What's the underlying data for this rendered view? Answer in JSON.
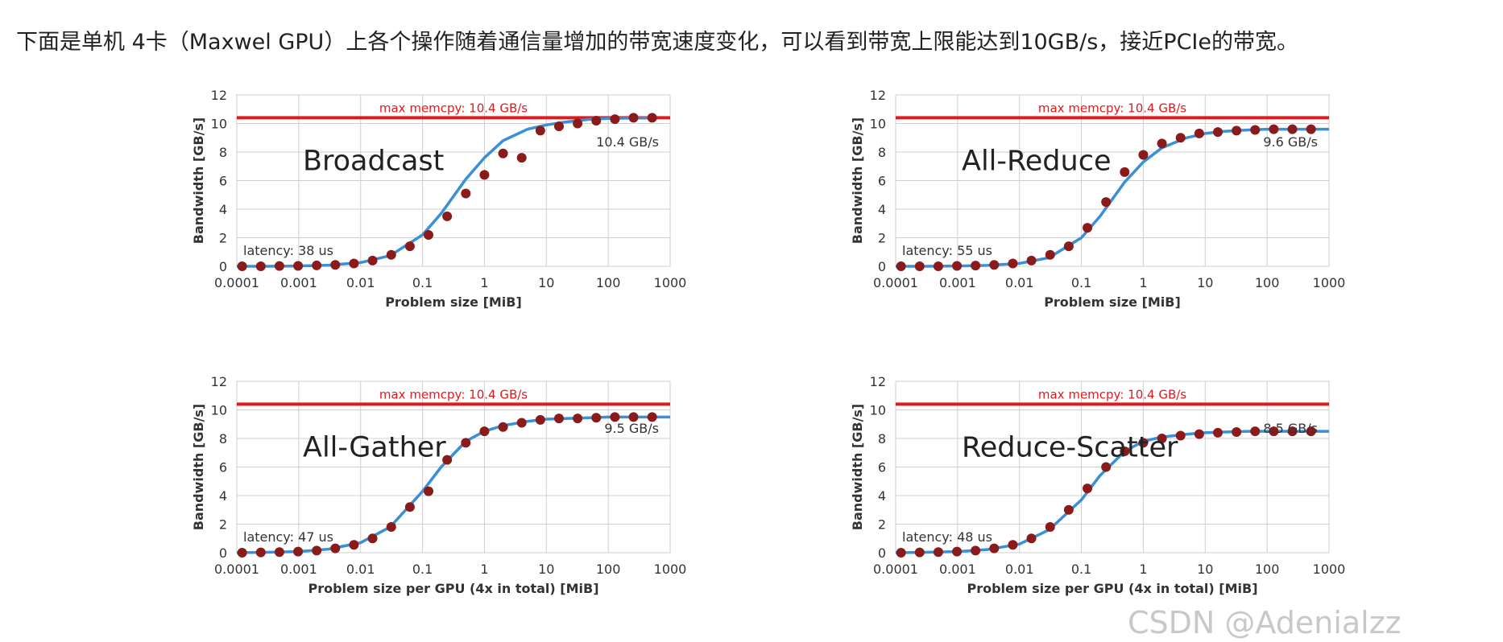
{
  "caption": "下面是单机 4卡（Maxwel GPU）上各个操作随着通信量增加的带宽速度变化，可以看到带宽上限能达到10GB/s，接近PCIe的带宽。",
  "watermark": "CSDN @Adenialzz",
  "colors": {
    "curve": "#3a8fd6",
    "points": "#8b1a1a",
    "max_line": "#e0191e",
    "grid": "#cfcfcf"
  },
  "chart_data": [
    {
      "type": "scatter",
      "title": "Broadcast",
      "xlabel": "Problem size [MiB]",
      "ylabel": "Bandwidth [GB/s]",
      "xscale": "log",
      "xlim": [
        0.0001,
        1000
      ],
      "ylim": [
        0,
        12
      ],
      "xticks": [
        "0.0001",
        "0.001",
        "0.01",
        "0.1",
        "1",
        "10",
        "100",
        "1000"
      ],
      "yticks": [
        "0",
        "2",
        "4",
        "6",
        "8",
        "10",
        "12"
      ],
      "grid": true,
      "max_line": {
        "value": 10.4,
        "label": "max memcpy: 10.4 GB/s"
      },
      "peak_label": "10.4 GB/s",
      "latency_label": "latency: 38 us",
      "series": [
        {
          "kind": "measured",
          "x": [
            0.000122,
            0.000244,
            0.000488,
            0.000977,
            0.00195,
            0.0039,
            0.0078,
            0.0156,
            0.03125,
            0.0625,
            0.125,
            0.25,
            0.5,
            1,
            2,
            4,
            8,
            16,
            32,
            64,
            128,
            256,
            512
          ],
          "y": [
            0.0,
            0.0,
            0.02,
            0.03,
            0.06,
            0.1,
            0.2,
            0.4,
            0.8,
            1.4,
            2.2,
            3.5,
            5.1,
            6.4,
            7.9,
            7.6,
            9.5,
            9.8,
            10.0,
            10.2,
            10.3,
            10.4,
            10.4
          ]
        },
        {
          "kind": "model",
          "x": [
            0.0001,
            0.0003,
            0.001,
            0.003,
            0.01,
            0.03,
            0.1,
            0.2,
            0.5,
            1,
            2,
            5,
            10,
            20,
            50,
            100,
            500
          ],
          "y": [
            0.0,
            0.0,
            0.02,
            0.08,
            0.26,
            0.75,
            2.2,
            3.7,
            6.1,
            7.6,
            8.8,
            9.6,
            9.9,
            10.1,
            10.3,
            10.35,
            10.4
          ]
        }
      ]
    },
    {
      "type": "scatter",
      "title": "All-Reduce",
      "xlabel": "Problem size [MiB]",
      "ylabel": "Bandwidth [GB/s]",
      "xscale": "log",
      "xlim": [
        0.0001,
        1000
      ],
      "ylim": [
        0,
        12
      ],
      "xticks": [
        "0.0001",
        "0.001",
        "0.01",
        "0.1",
        "1",
        "10",
        "100",
        "1000"
      ],
      "yticks": [
        "0",
        "2",
        "4",
        "6",
        "8",
        "10",
        "12"
      ],
      "grid": true,
      "max_line": {
        "value": 10.4,
        "label": "max memcpy: 10.4 GB/s"
      },
      "peak_label": "9.6 GB/s",
      "latency_label": "latency: 55 us",
      "series": [
        {
          "kind": "measured",
          "x": [
            0.000122,
            0.000244,
            0.000488,
            0.000977,
            0.00195,
            0.0039,
            0.0078,
            0.0156,
            0.03125,
            0.0625,
            0.125,
            0.25,
            0.5,
            1,
            2,
            4,
            8,
            16,
            32,
            64,
            128,
            256,
            512
          ],
          "y": [
            0.0,
            0.0,
            0.0,
            0.03,
            0.05,
            0.1,
            0.2,
            0.4,
            0.8,
            1.4,
            2.7,
            4.5,
            6.6,
            7.8,
            8.6,
            9.0,
            9.3,
            9.4,
            9.5,
            9.55,
            9.6,
            9.6,
            9.6
          ]
        },
        {
          "kind": "model",
          "x": [
            0.0001,
            0.0003,
            0.001,
            0.003,
            0.01,
            0.03,
            0.1,
            0.2,
            0.5,
            1,
            2,
            5,
            10,
            20,
            50,
            100,
            1000
          ],
          "y": [
            0.0,
            0.0,
            0.02,
            0.06,
            0.2,
            0.6,
            2.0,
            3.5,
            5.9,
            7.3,
            8.3,
            9.0,
            9.3,
            9.45,
            9.55,
            9.6,
            9.6
          ]
        }
      ]
    },
    {
      "type": "scatter",
      "title": "All-Gather",
      "xlabel": "Problem size per GPU (4x in total) [MiB]",
      "ylabel": "Bandwidth [GB/s]",
      "xscale": "log",
      "xlim": [
        0.0001,
        1000
      ],
      "ylim": [
        0,
        12
      ],
      "xticks": [
        "0.0001",
        "0.001",
        "0.01",
        "0.1",
        "1",
        "10",
        "100",
        "1000"
      ],
      "yticks": [
        "0",
        "2",
        "4",
        "6",
        "8",
        "10",
        "12"
      ],
      "grid": true,
      "max_line": {
        "value": 10.4,
        "label": "max memcpy: 10.4 GB/s"
      },
      "peak_label": "9.5 GB/s",
      "latency_label": "latency: 47 us",
      "series": [
        {
          "kind": "measured",
          "x": [
            0.000122,
            0.000244,
            0.000488,
            0.000977,
            0.00195,
            0.0039,
            0.0078,
            0.0156,
            0.03125,
            0.0625,
            0.125,
            0.25,
            0.5,
            1,
            2,
            4,
            8,
            16,
            32,
            64,
            128,
            256,
            512
          ],
          "y": [
            0.0,
            0.02,
            0.04,
            0.08,
            0.15,
            0.3,
            0.55,
            1.0,
            1.8,
            3.2,
            4.3,
            6.5,
            7.7,
            8.5,
            8.8,
            9.1,
            9.3,
            9.4,
            9.4,
            9.45,
            9.5,
            9.5,
            9.5
          ]
        },
        {
          "kind": "model",
          "x": [
            0.0001,
            0.0003,
            0.001,
            0.003,
            0.01,
            0.03,
            0.1,
            0.2,
            0.5,
            1,
            2,
            5,
            10,
            20,
            50,
            100,
            1000
          ],
          "y": [
            0.0,
            0.03,
            0.08,
            0.25,
            0.7,
            1.8,
            4.3,
            6.0,
            7.8,
            8.5,
            8.9,
            9.2,
            9.35,
            9.4,
            9.45,
            9.5,
            9.5
          ]
        }
      ]
    },
    {
      "type": "scatter",
      "title": "Reduce-Scatter",
      "xlabel": "Problem size per GPU (4x in total) [MiB]",
      "ylabel": "Bandwidth [GB/s]",
      "xscale": "log",
      "xlim": [
        0.0001,
        1000
      ],
      "ylim": [
        0,
        12
      ],
      "xticks": [
        "0.0001",
        "0.001",
        "0.01",
        "0.1",
        "1",
        "10",
        "100",
        "1000"
      ],
      "yticks": [
        "0",
        "2",
        "4",
        "6",
        "8",
        "10",
        "12"
      ],
      "grid": true,
      "max_line": {
        "value": 10.4,
        "label": "max memcpy: 10.4 GB/s"
      },
      "peak_label": "8.5 GB/s",
      "latency_label": "latency: 48 us",
      "series": [
        {
          "kind": "measured",
          "x": [
            0.000122,
            0.000244,
            0.000488,
            0.000977,
            0.00195,
            0.0039,
            0.0078,
            0.0156,
            0.03125,
            0.0625,
            0.125,
            0.25,
            0.5,
            1,
            2,
            4,
            8,
            16,
            32,
            64,
            128,
            256,
            512
          ],
          "y": [
            0.0,
            0.02,
            0.04,
            0.08,
            0.15,
            0.3,
            0.55,
            1.0,
            1.8,
            3.0,
            4.5,
            6.0,
            7.1,
            7.7,
            8.0,
            8.2,
            8.3,
            8.4,
            8.45,
            8.5,
            8.5,
            8.5,
            8.5
          ]
        },
        {
          "kind": "model",
          "x": [
            0.0001,
            0.0003,
            0.001,
            0.003,
            0.01,
            0.03,
            0.1,
            0.2,
            0.5,
            1,
            2,
            5,
            10,
            20,
            50,
            100,
            1000
          ],
          "y": [
            0.0,
            0.03,
            0.08,
            0.22,
            0.6,
            1.6,
            3.7,
            5.4,
            7.1,
            7.8,
            8.1,
            8.3,
            8.4,
            8.45,
            8.5,
            8.5,
            8.5
          ]
        }
      ]
    }
  ]
}
